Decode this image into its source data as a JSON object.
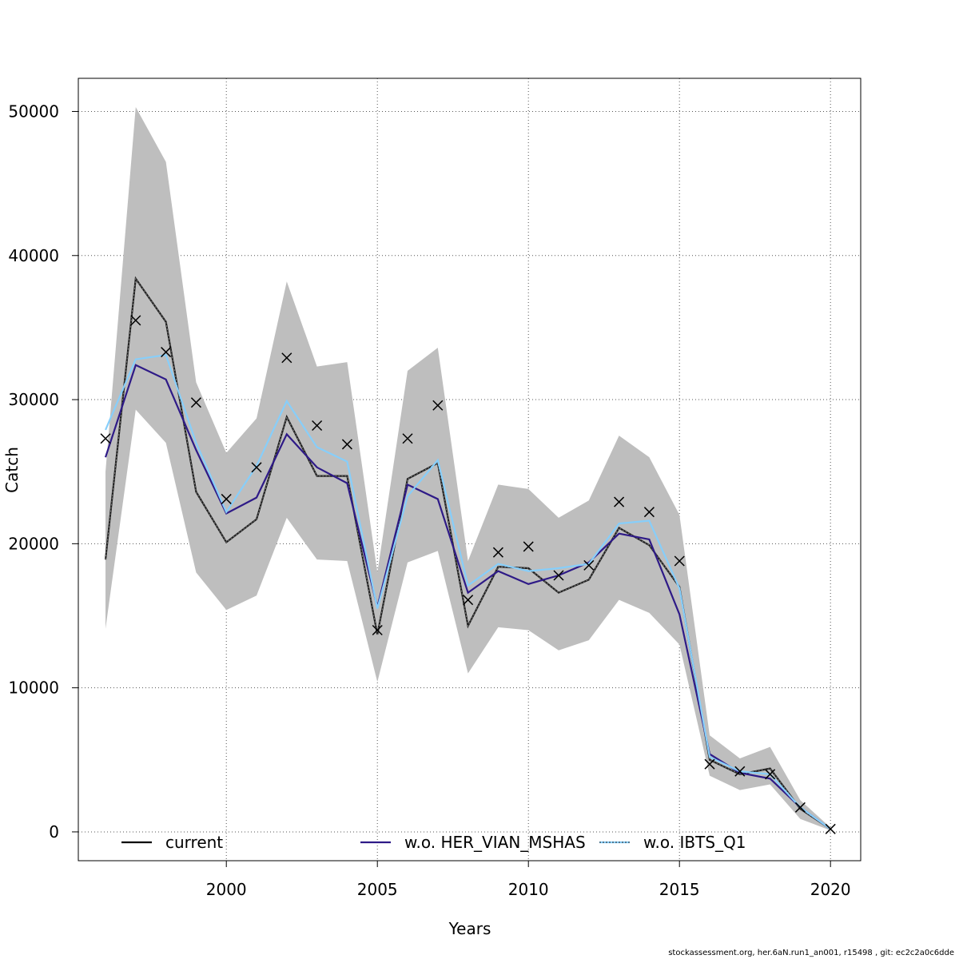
{
  "chart_data": {
    "type": "line",
    "xlabel": "Years",
    "ylabel": "Catch",
    "xlim": [
      1995.1,
      2021.0
    ],
    "ylim": [
      -2000,
      52300
    ],
    "x_ticks": [
      2000,
      2005,
      2010,
      2015,
      2020
    ],
    "x_tick_labels": [
      "2000",
      "2005",
      "2010",
      "2015",
      "2020"
    ],
    "y_ticks": [
      0,
      10000,
      20000,
      30000,
      40000,
      50000
    ],
    "y_tick_labels": [
      "0",
      "10000",
      "20000",
      "30000",
      "40000",
      "50000"
    ],
    "grid": true,
    "legend_position": "bottom",
    "x": [
      1996,
      1997,
      1998,
      1999,
      2000,
      2001,
      2002,
      2003,
      2004,
      2005,
      2006,
      2007,
      2008,
      2009,
      2010,
      2011,
      2012,
      2013,
      2014,
      2015,
      2016,
      2017,
      2018,
      2019,
      2020
    ],
    "band": {
      "upper": [
        25000,
        50300,
        46500,
        31200,
        26300,
        28700,
        38200,
        32300,
        32600,
        18000,
        32000,
        33600,
        18800,
        24100,
        23800,
        21800,
        23000,
        27500,
        26000,
        22000,
        6700,
        5100,
        5900,
        2200,
        300
      ],
      "lower": [
        14100,
        29300,
        27000,
        18000,
        15400,
        16400,
        21800,
        18900,
        18800,
        10400,
        18700,
        19500,
        11000,
        14200,
        14000,
        12600,
        13300,
        16100,
        15200,
        13000,
        3900,
        2900,
        3300,
        900,
        100
      ],
      "color": "#bebebe"
    },
    "series": [
      {
        "name": "current",
        "color": "#000000",
        "values": [
          18900,
          38400,
          35400,
          23600,
          20100,
          21700,
          28800,
          24700,
          24700,
          13700,
          24500,
          25600,
          14300,
          18400,
          18300,
          16600,
          17500,
          21100,
          19900,
          17000,
          5000,
          4000,
          4400,
          1600,
          200
        ]
      },
      {
        "name": "w.o. HER_VIAN_MSHAS",
        "color": "#2e1a87",
        "values": [
          26000,
          32400,
          31400,
          26500,
          22100,
          23200,
          27600,
          25300,
          24200,
          15600,
          24100,
          23100,
          16600,
          18100,
          17200,
          17800,
          18700,
          20700,
          20300,
          15100,
          5400,
          4100,
          3700,
          1700,
          200
        ]
      },
      {
        "name": "w.o. IBTS_Q1",
        "color": "#87cefa",
        "values": [
          27900,
          32800,
          33100,
          27000,
          22200,
          25400,
          29900,
          26700,
          25700,
          15500,
          23300,
          25800,
          17100,
          18600,
          18100,
          18300,
          18600,
          21400,
          21600,
          16900,
          5200,
          4200,
          4000,
          1700,
          200
        ]
      }
    ],
    "observations": {
      "marker": "cross",
      "color": "#000000",
      "values": [
        27300,
        35500,
        33300,
        29800,
        23100,
        25300,
        32900,
        28200,
        26900,
        14000,
        27300,
        29600,
        16100,
        19400,
        19800,
        17800,
        18500,
        22900,
        22200,
        18800,
        4700,
        4200,
        4000,
        1700,
        200
      ]
    }
  },
  "footer": {
    "text": "stockassessment.org, her.6aN.run1_an001, r15498 , git: ec2c2a0c6dde"
  }
}
